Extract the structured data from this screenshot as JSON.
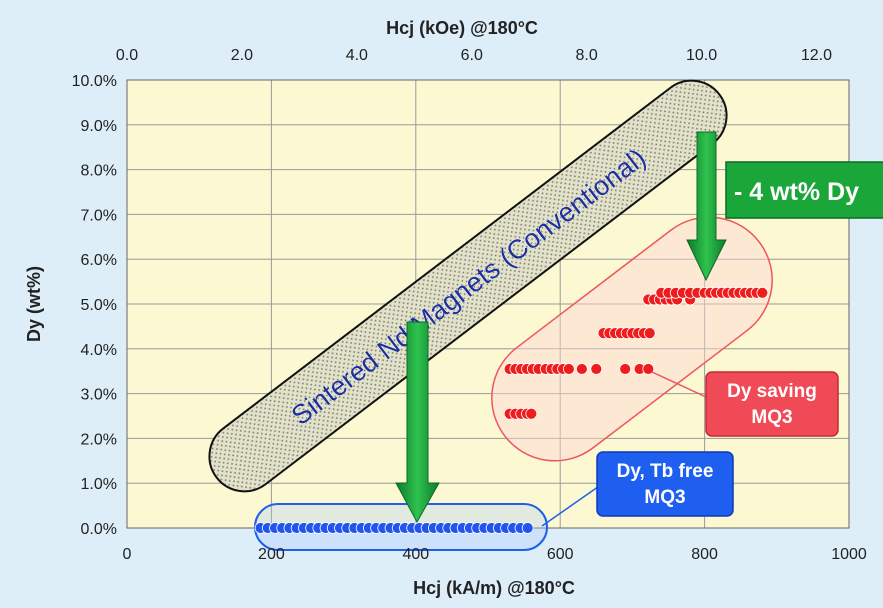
{
  "chart_data": {
    "type": "scatter",
    "top_axis": {
      "label": "Hcj (kOe) @180°C",
      "ticks": [
        "0.0",
        "2.0",
        "4.0",
        "6.0",
        "8.0",
        "10.0",
        "12.0"
      ],
      "values": [
        0,
        2,
        4,
        6,
        8,
        10,
        12
      ]
    },
    "x_axis": {
      "label": "Hcj (kA/m)  @180°C",
      "range": [
        0,
        1000
      ],
      "ticks": [
        "0",
        "200",
        "400",
        "600",
        "800",
        "1000"
      ],
      "values": [
        0,
        200,
        400,
        600,
        800,
        1000
      ]
    },
    "y_axis": {
      "label": "Dy   (wt%)",
      "range": [
        0,
        10
      ],
      "ticks": [
        "0.0%",
        "1.0%",
        "2.0%",
        "3.0%",
        "4.0%",
        "5.0%",
        "6.0%",
        "7.0%",
        "8.0%",
        "9.0%",
        "10.0%"
      ],
      "values": [
        0,
        1,
        2,
        3,
        4,
        5,
        6,
        7,
        8,
        9,
        10
      ]
    },
    "grid": true,
    "series": [
      {
        "name": "Dy saving MQ3",
        "color": "#ee1c1c",
        "points": [
          [
            530,
            2.55
          ],
          [
            538,
            2.55
          ],
          [
            546,
            2.55
          ],
          [
            554,
            2.55
          ],
          [
            560,
            2.55
          ],
          [
            530,
            3.55
          ],
          [
            538,
            3.55
          ],
          [
            546,
            3.55
          ],
          [
            554,
            3.55
          ],
          [
            562,
            3.55
          ],
          [
            570,
            3.55
          ],
          [
            580,
            3.55
          ],
          [
            588,
            3.55
          ],
          [
            596,
            3.55
          ],
          [
            604,
            3.55
          ],
          [
            612,
            3.55
          ],
          [
            630,
            3.55
          ],
          [
            650,
            3.55
          ],
          [
            690,
            3.55
          ],
          [
            710,
            3.55
          ],
          [
            722,
            3.55
          ],
          [
            660,
            4.35
          ],
          [
            668,
            4.35
          ],
          [
            676,
            4.35
          ],
          [
            684,
            4.35
          ],
          [
            692,
            4.35
          ],
          [
            700,
            4.35
          ],
          [
            708,
            4.35
          ],
          [
            716,
            4.35
          ],
          [
            724,
            4.35
          ],
          [
            722,
            5.1
          ],
          [
            730,
            5.1
          ],
          [
            738,
            5.1
          ],
          [
            746,
            5.1
          ],
          [
            754,
            5.1
          ],
          [
            762,
            5.1
          ],
          [
            780,
            5.1
          ],
          [
            740,
            5.25
          ],
          [
            750,
            5.25
          ],
          [
            760,
            5.25
          ],
          [
            770,
            5.25
          ],
          [
            780,
            5.25
          ],
          [
            790,
            5.25
          ],
          [
            800,
            5.25
          ],
          [
            808,
            5.25
          ],
          [
            816,
            5.25
          ],
          [
            824,
            5.25
          ],
          [
            832,
            5.25
          ],
          [
            840,
            5.25
          ],
          [
            848,
            5.25
          ],
          [
            856,
            5.25
          ],
          [
            864,
            5.25
          ],
          [
            872,
            5.25
          ],
          [
            880,
            5.25
          ]
        ]
      },
      {
        "name": "Dy, Tb free MQ3",
        "color": "#2255ee",
        "points": [
          [
            185,
            0
          ],
          [
            195,
            0
          ],
          [
            205,
            0
          ],
          [
            215,
            0
          ],
          [
            225,
            0
          ],
          [
            235,
            0
          ],
          [
            245,
            0
          ],
          [
            255,
            0
          ],
          [
            265,
            0
          ],
          [
            275,
            0
          ],
          [
            285,
            0
          ],
          [
            295,
            0
          ],
          [
            305,
            0
          ],
          [
            315,
            0
          ],
          [
            325,
            0
          ],
          [
            335,
            0
          ],
          [
            345,
            0
          ],
          [
            355,
            0
          ],
          [
            365,
            0
          ],
          [
            375,
            0
          ],
          [
            385,
            0
          ],
          [
            395,
            0
          ],
          [
            405,
            0
          ],
          [
            415,
            0
          ],
          [
            425,
            0
          ],
          [
            435,
            0
          ],
          [
            445,
            0
          ],
          [
            455,
            0
          ],
          [
            465,
            0
          ],
          [
            475,
            0
          ],
          [
            485,
            0
          ],
          [
            495,
            0
          ],
          [
            505,
            0
          ],
          [
            515,
            0
          ],
          [
            525,
            0
          ],
          [
            535,
            0
          ],
          [
            545,
            0
          ],
          [
            555,
            0
          ]
        ]
      }
    ],
    "annotations": {
      "band_label": "Sintered Nd Magnets (Conventional)",
      "reduction_label": "- 4 wt% Dy",
      "dy_saving_label": [
        "Dy saving",
        "MQ3"
      ],
      "dy_free_label": [
        "Dy, Tb free",
        "MQ3"
      ]
    },
    "colors": {
      "plot_bg": "#fbf8d2",
      "frame_bg": "#ddeef8",
      "arrow": "#1aa63a",
      "red_box": "#ee5560",
      "blue_box": "#1f5ff0"
    }
  }
}
